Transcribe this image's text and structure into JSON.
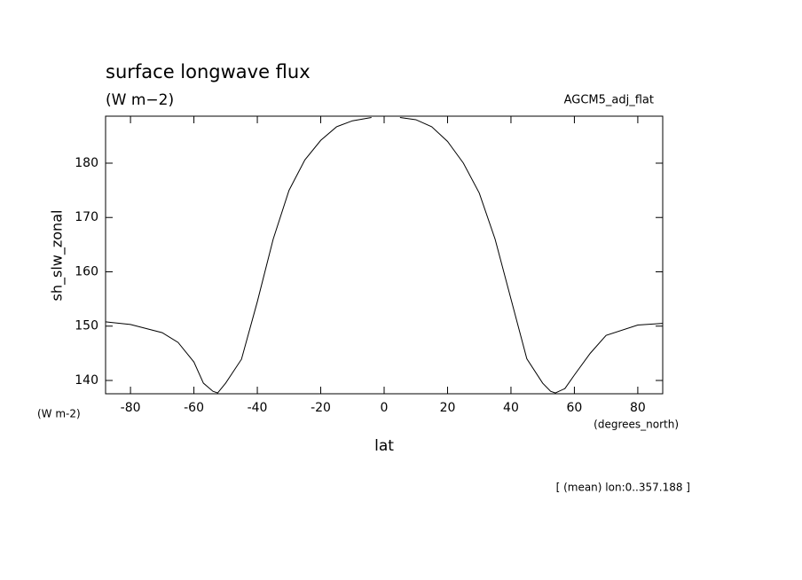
{
  "chart_data": {
    "type": "line",
    "title": "surface longwave flux",
    "subtitle": "(W m−2)",
    "dataset": "AGCM5_adj_flat",
    "y_label": "sh_slw_zonal",
    "y_units": "(W m-2)",
    "x_label": "lat",
    "x_units": "(degrees_north)",
    "footnote": "[ (mean) lon:0..357.188 ]",
    "x": [
      -87.86,
      -80,
      -70,
      -65,
      -60,
      -57,
      -54,
      -52.5,
      -50,
      -45,
      -40,
      -35,
      -30,
      -25,
      -20,
      -15,
      -10,
      -5,
      -4,
      0,
      5,
      10,
      15,
      20,
      25,
      30,
      35,
      40,
      45,
      50,
      52.5,
      54,
      57,
      60,
      65,
      70,
      80,
      87.86
    ],
    "values": [
      150.8,
      150.3,
      148.8,
      147,
      143.4,
      139.5,
      138,
      137.7,
      139.5,
      143.9,
      154.5,
      166,
      175,
      180.6,
      184.2,
      186.7,
      187.8,
      188.3,
      188.4,
      null,
      188.4,
      188,
      186.7,
      184,
      180,
      174.5,
      166,
      155,
      144,
      139.5,
      138,
      137.7,
      138.5,
      141,
      145,
      148.3,
      150.2,
      150.5
    ],
    "color": "#000000",
    "xlim": [
      -87.86,
      87.86
    ],
    "xticks": [
      -80,
      -60,
      -40,
      -20,
      0,
      20,
      40,
      60,
      80
    ],
    "ylim": [
      137.55,
      188.65
    ],
    "yticks": [
      140,
      150,
      160,
      170,
      180
    ]
  }
}
